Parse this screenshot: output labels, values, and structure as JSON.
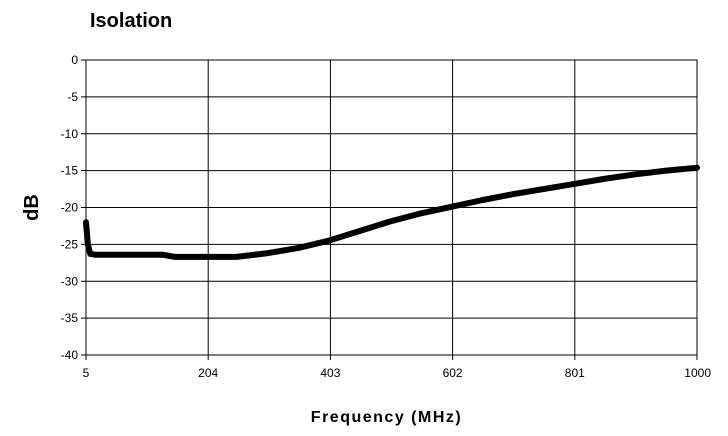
{
  "chart_data": {
    "type": "line",
    "title": "Isolation",
    "xlabel": "Frequency (MHz)",
    "ylabel": "dB",
    "xlim": [
      5,
      1000
    ],
    "ylim": [
      -40,
      0
    ],
    "x_ticks": [
      5,
      204,
      403,
      602,
      801,
      1000
    ],
    "y_ticks": [
      0,
      -5,
      -10,
      -15,
      -20,
      -25,
      -30,
      -35,
      -40
    ],
    "grid": true,
    "legend": "none",
    "series": [
      {
        "color": "#000000",
        "x": [
          5,
          8,
          12,
          20,
          50,
          100,
          130,
          150,
          200,
          250,
          300,
          350,
          400,
          450,
          500,
          550,
          600,
          650,
          700,
          750,
          800,
          850,
          900,
          950,
          1000
        ],
        "y": [
          -22,
          -25,
          -26.3,
          -26.4,
          -26.4,
          -26.4,
          -26.4,
          -26.7,
          -26.7,
          -26.7,
          -26.2,
          -25.5,
          -24.5,
          -23.2,
          -21.9,
          -20.8,
          -19.9,
          -19.0,
          -18.2,
          -17.5,
          -16.8,
          -16.1,
          -15.5,
          -15.0,
          -14.6
        ]
      }
    ]
  }
}
